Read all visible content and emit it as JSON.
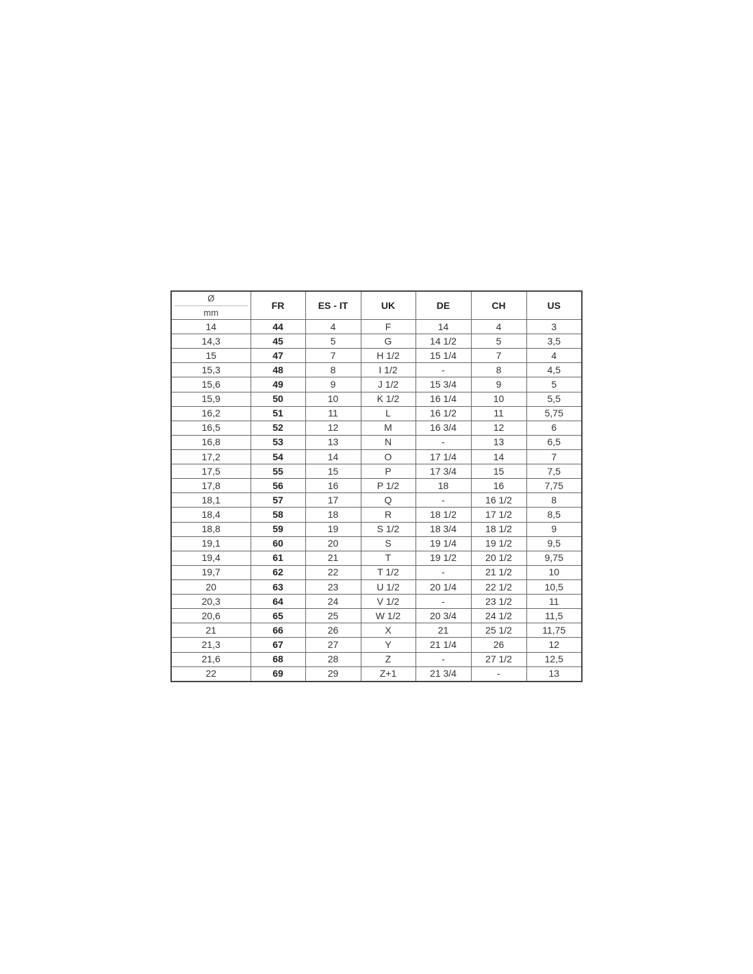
{
  "table": {
    "headers": {
      "diameter_symbol": "Ø",
      "diameter_unit": "mm",
      "columns": [
        "FR",
        "ES - IT",
        "UK",
        "DE",
        "CH",
        "US"
      ]
    },
    "rows": [
      [
        "14",
        "44",
        "4",
        "F",
        "14",
        "4",
        "3"
      ],
      [
        "14,3",
        "45",
        "5",
        "G",
        "14 1/2",
        "5",
        "3,5"
      ],
      [
        "15",
        "47",
        "7",
        "H 1/2",
        "15 1/4",
        "7",
        "4"
      ],
      [
        "15,3",
        "48",
        "8",
        "I 1/2",
        "-",
        "8",
        "4,5"
      ],
      [
        "15,6",
        "49",
        "9",
        "J 1/2",
        "15 3/4",
        "9",
        "5"
      ],
      [
        "15,9",
        "50",
        "10",
        "K 1/2",
        "16 1/4",
        "10",
        "5,5"
      ],
      [
        "16,2",
        "51",
        "11",
        "L",
        "16 1/2",
        "11",
        "5,75"
      ],
      [
        "16,5",
        "52",
        "12",
        "M",
        "16 3/4",
        "12",
        "6"
      ],
      [
        "16,8",
        "53",
        "13",
        "N",
        "-",
        "13",
        "6,5"
      ],
      [
        "17,2",
        "54",
        "14",
        "O",
        "17 1/4",
        "14",
        "7"
      ],
      [
        "17,5",
        "55",
        "15",
        "P",
        "17 3/4",
        "15",
        "7,5"
      ],
      [
        "17,8",
        "56",
        "16",
        "P 1/2",
        "18",
        "16",
        "7,75"
      ],
      [
        "18,1",
        "57",
        "17",
        "Q",
        "-",
        "16 1/2",
        "8"
      ],
      [
        "18,4",
        "58",
        "18",
        "R",
        "18 1/2",
        "17 1/2",
        "8,5"
      ],
      [
        "18,8",
        "59",
        "19",
        "S 1/2",
        "18 3/4",
        "18 1/2",
        "9"
      ],
      [
        "19,1",
        "60",
        "20",
        "S",
        "19 1/4",
        "19 1/2",
        "9,5"
      ],
      [
        "19,4",
        "61",
        "21",
        "T",
        "19 1/2",
        "20 1/2",
        "9,75"
      ],
      [
        "19,7",
        "62",
        "22",
        "T 1/2",
        "-",
        "21 1/2",
        "10"
      ],
      [
        "20",
        "63",
        "23",
        "U 1/2",
        "20 1/4",
        "22 1/2",
        "10,5"
      ],
      [
        "20,3",
        "64",
        "24",
        "V 1/2",
        "-",
        "23 1/2",
        "11"
      ],
      [
        "20,6",
        "65",
        "25",
        "W 1/2",
        "20 3/4",
        "24 1/2",
        "11,5"
      ],
      [
        "21",
        "66",
        "26",
        "X",
        "21",
        "25 1/2",
        "11,75"
      ],
      [
        "21,3",
        "67",
        "27",
        "Y",
        "21 1/4",
        "26",
        "12"
      ],
      [
        "21,6",
        "68",
        "28",
        "Z",
        "-",
        "27 1/2",
        "12,5"
      ],
      [
        "22",
        "69",
        "29",
        "Z+1",
        "21 3/4",
        "-",
        "13"
      ]
    ]
  }
}
